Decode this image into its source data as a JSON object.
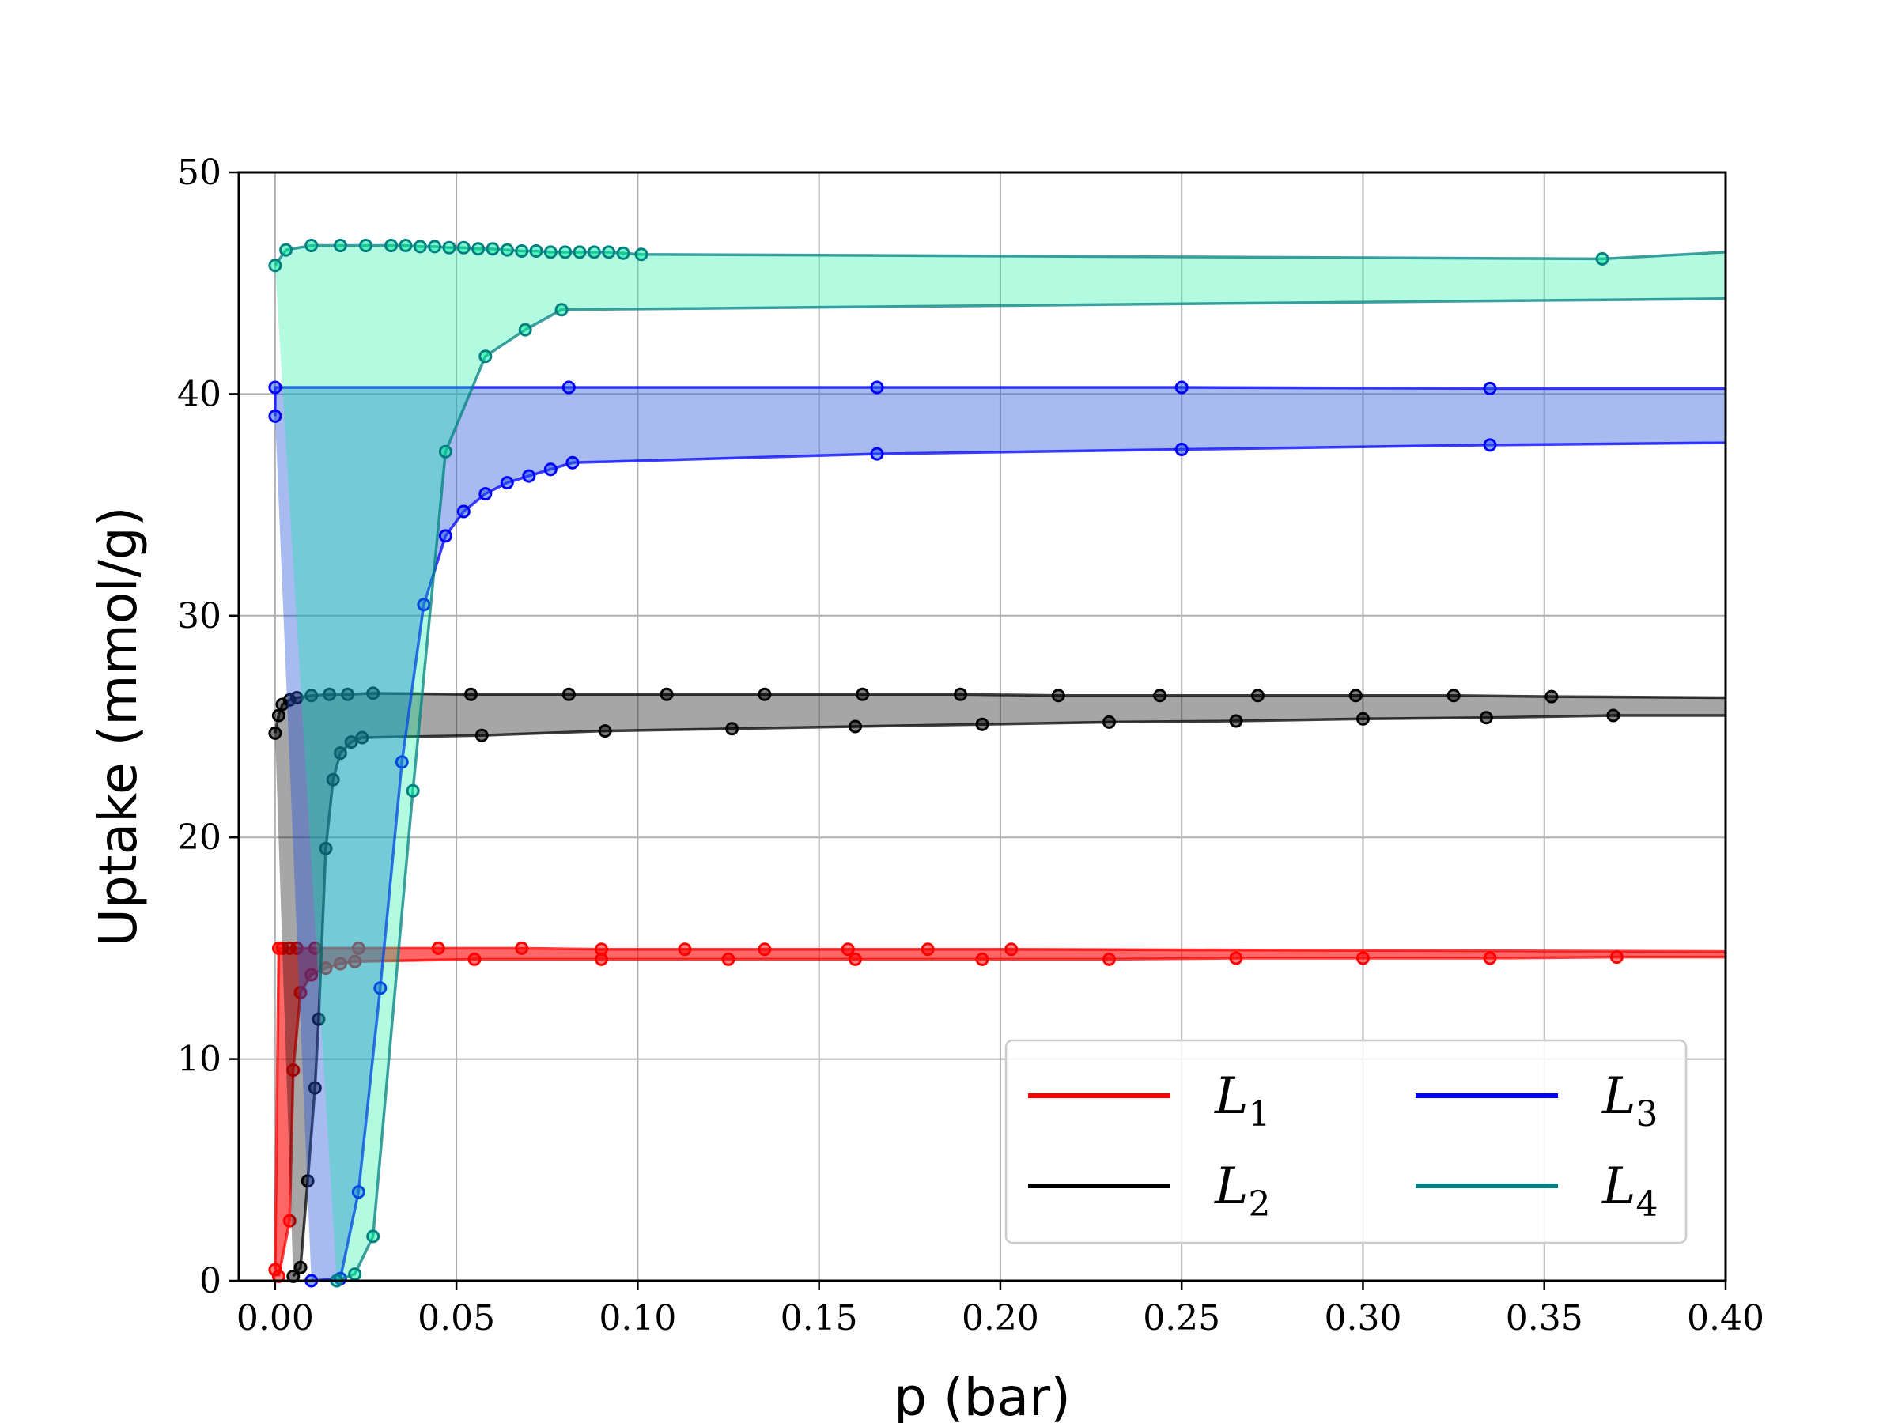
{
  "chart_data": {
    "type": "line",
    "xlabel": "p (bar)",
    "ylabel": "Uptake (mmol/g)",
    "xlim": [
      -0.01,
      0.4
    ],
    "ylim": [
      0,
      50
    ],
    "xticks": [
      "0.00",
      "0.05",
      "0.10",
      "0.15",
      "0.20",
      "0.25",
      "0.30",
      "0.35",
      "0.40"
    ],
    "yticks": [
      "0",
      "10",
      "20",
      "30",
      "40",
      "50"
    ],
    "grid": true,
    "legend_position": "lower-right",
    "series": [
      {
        "name": "L",
        "subscript": "1",
        "color": "#ff0000",
        "fill": "#ff0000",
        "fill_opacity": 0.6,
        "upper": [
          [
            0.0,
            0.5
          ],
          [
            0.001,
            15.0
          ],
          [
            0.002,
            15.0
          ],
          [
            0.004,
            15.0
          ],
          [
            0.006,
            15.0
          ],
          [
            0.011,
            15.0
          ],
          [
            0.023,
            15.0
          ],
          [
            0.045,
            15.0
          ],
          [
            0.068,
            15.0
          ],
          [
            0.09,
            14.95
          ],
          [
            0.113,
            14.95
          ],
          [
            0.135,
            14.95
          ],
          [
            0.158,
            14.95
          ],
          [
            0.18,
            14.95
          ],
          [
            0.203,
            14.95
          ],
          [
            0.4,
            14.85
          ]
        ],
        "lower": [
          [
            0.001,
            0.2
          ],
          [
            0.004,
            2.7
          ],
          [
            0.005,
            9.5
          ],
          [
            0.007,
            13.0
          ],
          [
            0.01,
            13.8
          ],
          [
            0.014,
            14.1
          ],
          [
            0.018,
            14.3
          ],
          [
            0.022,
            14.4
          ],
          [
            0.055,
            14.5
          ],
          [
            0.09,
            14.5
          ],
          [
            0.125,
            14.5
          ],
          [
            0.16,
            14.5
          ],
          [
            0.195,
            14.5
          ],
          [
            0.23,
            14.5
          ],
          [
            0.265,
            14.55
          ],
          [
            0.3,
            14.55
          ],
          [
            0.335,
            14.55
          ],
          [
            0.37,
            14.6
          ],
          [
            0.4,
            14.6
          ]
        ]
      },
      {
        "name": "L",
        "subscript": "2",
        "color": "#000000",
        "fill": "#000000",
        "fill_opacity": 0.35,
        "upper": [
          [
            0.0,
            24.7
          ],
          [
            0.001,
            25.5
          ],
          [
            0.002,
            26.0
          ],
          [
            0.004,
            26.2
          ],
          [
            0.006,
            26.3
          ],
          [
            0.01,
            26.4
          ],
          [
            0.015,
            26.45
          ],
          [
            0.02,
            26.45
          ],
          [
            0.027,
            26.5
          ],
          [
            0.054,
            26.45
          ],
          [
            0.081,
            26.45
          ],
          [
            0.108,
            26.45
          ],
          [
            0.135,
            26.45
          ],
          [
            0.162,
            26.45
          ],
          [
            0.189,
            26.45
          ],
          [
            0.216,
            26.4
          ],
          [
            0.244,
            26.4
          ],
          [
            0.271,
            26.4
          ],
          [
            0.298,
            26.4
          ],
          [
            0.325,
            26.4
          ],
          [
            0.352,
            26.35
          ],
          [
            0.4,
            26.3
          ]
        ],
        "lower": [
          [
            0.005,
            0.2
          ],
          [
            0.007,
            0.6
          ],
          [
            0.009,
            4.5
          ],
          [
            0.011,
            8.7
          ],
          [
            0.012,
            11.8
          ],
          [
            0.014,
            19.5
          ],
          [
            0.016,
            22.6
          ],
          [
            0.018,
            23.8
          ],
          [
            0.021,
            24.3
          ],
          [
            0.024,
            24.5
          ],
          [
            0.057,
            24.6
          ],
          [
            0.091,
            24.8
          ],
          [
            0.126,
            24.9
          ],
          [
            0.16,
            25.0
          ],
          [
            0.195,
            25.1
          ],
          [
            0.23,
            25.2
          ],
          [
            0.265,
            25.25
          ],
          [
            0.3,
            25.35
          ],
          [
            0.334,
            25.4
          ],
          [
            0.369,
            25.5
          ],
          [
            0.4,
            25.5
          ]
        ]
      },
      {
        "name": "L",
        "subscript": "3",
        "color": "#0000ff",
        "fill": "#2255dd",
        "fill_opacity": 0.4,
        "upper": [
          [
            0.0,
            39.0
          ],
          [
            0.0,
            40.3
          ],
          [
            0.081,
            40.3
          ],
          [
            0.166,
            40.3
          ],
          [
            0.25,
            40.3
          ],
          [
            0.335,
            40.25
          ],
          [
            0.4,
            40.25
          ]
        ],
        "lower": [
          [
            0.01,
            0.0
          ],
          [
            0.018,
            0.1
          ],
          [
            0.023,
            4.0
          ],
          [
            0.029,
            13.2
          ],
          [
            0.035,
            23.4
          ],
          [
            0.041,
            30.5
          ],
          [
            0.047,
            33.6
          ],
          [
            0.052,
            34.7
          ],
          [
            0.058,
            35.5
          ],
          [
            0.064,
            36.0
          ],
          [
            0.07,
            36.3
          ],
          [
            0.076,
            36.6
          ],
          [
            0.082,
            36.9
          ],
          [
            0.166,
            37.3
          ],
          [
            0.25,
            37.5
          ],
          [
            0.335,
            37.7
          ],
          [
            0.4,
            37.8
          ]
        ]
      },
      {
        "name": "L",
        "subscript": "4",
        "color": "#008080",
        "fill": "#00ee99",
        "fill_opacity": 0.3,
        "upper": [
          [
            0.0,
            45.8
          ],
          [
            0.003,
            46.5
          ],
          [
            0.01,
            46.7
          ],
          [
            0.018,
            46.7
          ],
          [
            0.025,
            46.7
          ],
          [
            0.032,
            46.7
          ],
          [
            0.036,
            46.7
          ],
          [
            0.04,
            46.65
          ],
          [
            0.044,
            46.65
          ],
          [
            0.048,
            46.6
          ],
          [
            0.052,
            46.6
          ],
          [
            0.056,
            46.55
          ],
          [
            0.06,
            46.55
          ],
          [
            0.064,
            46.5
          ],
          [
            0.068,
            46.45
          ],
          [
            0.072,
            46.45
          ],
          [
            0.076,
            46.4
          ],
          [
            0.08,
            46.4
          ],
          [
            0.084,
            46.4
          ],
          [
            0.088,
            46.4
          ],
          [
            0.092,
            46.4
          ],
          [
            0.096,
            46.35
          ],
          [
            0.101,
            46.3
          ],
          [
            0.366,
            46.1
          ],
          [
            0.4,
            46.4
          ]
        ],
        "lower": [
          [
            0.017,
            0.0
          ],
          [
            0.022,
            0.3
          ],
          [
            0.027,
            2.0
          ],
          [
            0.038,
            22.1
          ],
          [
            0.047,
            37.4
          ],
          [
            0.058,
            41.7
          ],
          [
            0.069,
            42.9
          ],
          [
            0.079,
            43.8
          ],
          [
            0.4,
            44.3
          ]
        ]
      }
    ]
  }
}
